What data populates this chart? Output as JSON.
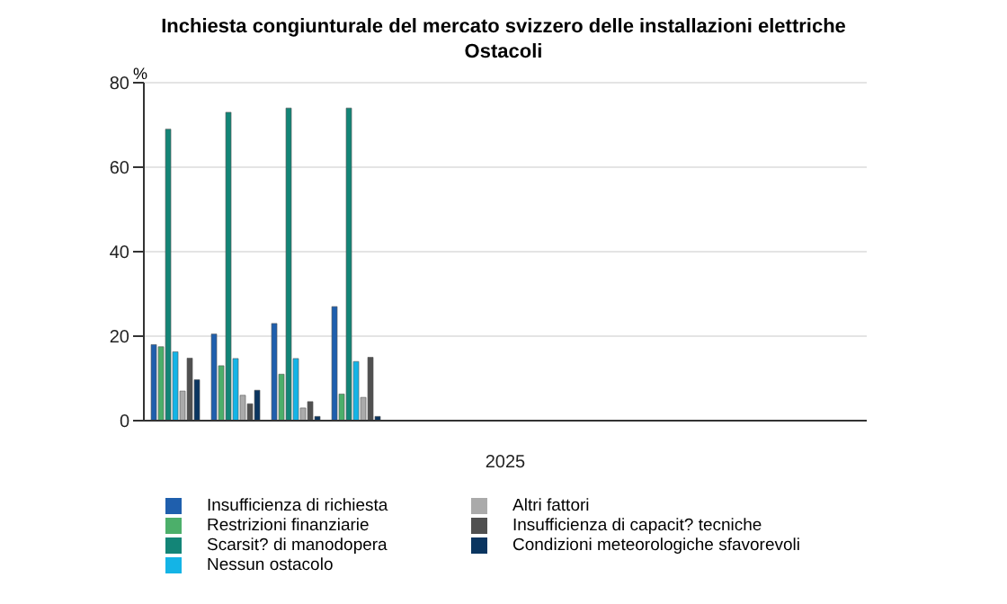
{
  "chart_data": {
    "type": "bar",
    "title": "Inchiesta congiunturale del mercato svizzero delle installazioni elettriche",
    "subtitle": "Ostacoli",
    "ylabel": "%",
    "xlabel": "2025",
    "categories": [
      null,
      null,
      null,
      null,
      null,
      null,
      null,
      null,
      null,
      null,
      null,
      null
    ],
    "series": [
      {
        "name": "Insufficienza di richiesta",
        "color": "#1f5fad",
        "values": [
          18,
          20.5,
          23,
          27,
          null,
          null,
          null,
          null,
          null,
          null,
          null,
          null
        ]
      },
      {
        "name": "Restrizioni finanziarie",
        "color": "#4caf6a",
        "values": [
          17.5,
          13,
          11,
          6.3,
          null,
          null,
          null,
          null,
          null,
          null,
          null,
          null
        ]
      },
      {
        "name": "Scarsit? di manodopera",
        "color": "#138577",
        "values": [
          69,
          73,
          74,
          74,
          null,
          null,
          null,
          null,
          null,
          null,
          null,
          null
        ]
      },
      {
        "name": "Nessun ostacolo",
        "color": "#14b4e6",
        "values": [
          16.3,
          14.7,
          14.7,
          14,
          null,
          null,
          null,
          null,
          null,
          null,
          null,
          null
        ]
      },
      {
        "name": "Altri fattori",
        "color": "#aaaaaa",
        "values": [
          7,
          6,
          3,
          5.5,
          null,
          null,
          null,
          null,
          null,
          null,
          null,
          null
        ]
      },
      {
        "name": "Insufficienza di capacit? tecniche",
        "color": "#505050",
        "values": [
          14.8,
          4,
          4.5,
          15,
          null,
          null,
          null,
          null,
          null,
          null,
          null,
          null
        ]
      },
      {
        "name": "Condizioni meteorologiche sfavorevoli",
        "color": "#0a3560",
        "values": [
          9.7,
          7.2,
          1,
          1,
          null,
          null,
          null,
          null,
          null,
          null,
          null,
          null
        ]
      }
    ],
    "ylim": [
      0,
      80
    ],
    "yticks": [
      0,
      20,
      40,
      60,
      80
    ],
    "grid": "y",
    "legend": "bottom"
  }
}
